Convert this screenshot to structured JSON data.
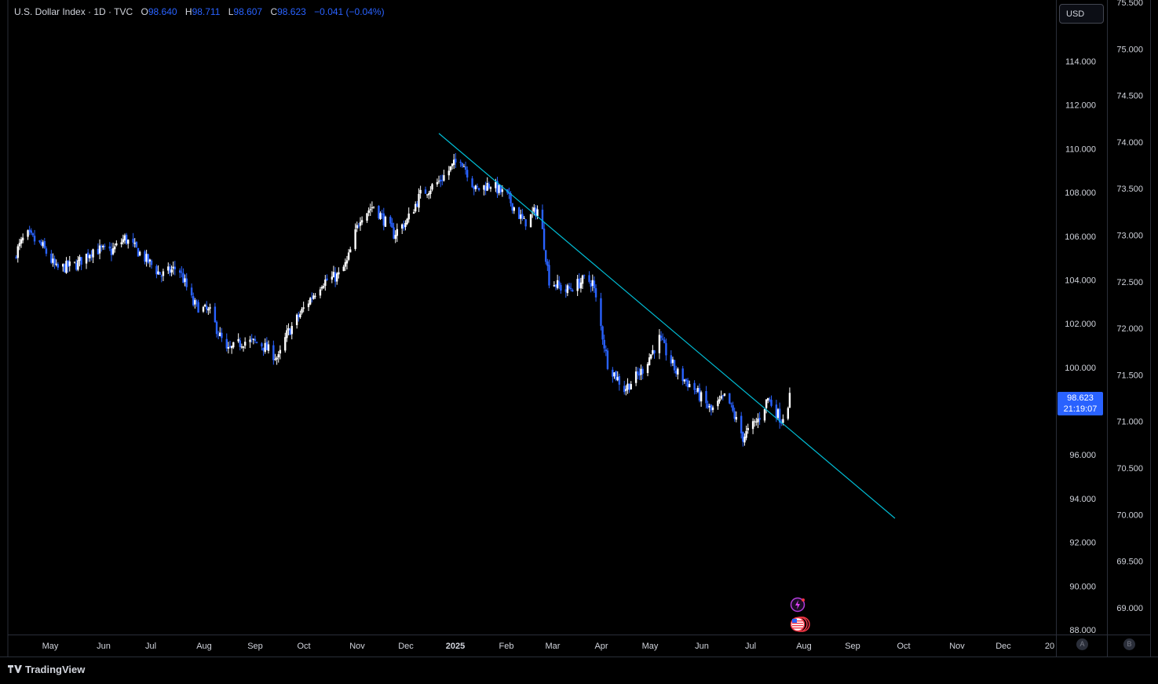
{
  "header": {
    "symbol": "U.S. Dollar Index · 1D · TVC",
    "open_label": "O",
    "open": "98.640",
    "high_label": "H",
    "high": "98.711",
    "low_label": "L",
    "low": "98.607",
    "close_label": "C",
    "close": "98.623",
    "change": "−0.041 (−0.04%)"
  },
  "toolbar": {
    "currency": "USD"
  },
  "last_price": {
    "value": "98.623",
    "countdown": "21:19:07"
  },
  "scale_buttons": {
    "a": "A",
    "b": "B"
  },
  "brand": {
    "name": "TradingView"
  },
  "colors": {
    "up": "#ffffff",
    "down": "#2962ff",
    "trendline": "#00bcd4",
    "background": "#000000",
    "accent": "#2962ff"
  },
  "icons": {
    "flash": "lightning-event-icon",
    "flag": "us-flag-event-icon"
  },
  "chart_data": {
    "type": "candlestick",
    "title": "U.S. Dollar Index",
    "interval": "1D",
    "y_axis_right": {
      "ticks": [
        "114.000",
        "112.000",
        "110.000",
        "108.000",
        "106.000",
        "104.000",
        "102.000",
        "100.000",
        "96.000",
        "94.000",
        "92.000",
        "90.000",
        "88.000"
      ],
      "range": [
        87.5,
        115.5
      ]
    },
    "y_axis_secondary": {
      "ticks": [
        "75.500",
        "75.000",
        "74.500",
        "74.000",
        "73.500",
        "73.000",
        "72.500",
        "72.000",
        "71.500",
        "71.000",
        "70.500",
        "70.000",
        "69.500",
        "69.000"
      ]
    },
    "x_axis": {
      "ticks": [
        "May",
        "Jun",
        "Jul",
        "Aug",
        "Sep",
        "Oct",
        "Nov",
        "Dec",
        "2025",
        "Feb",
        "Mar",
        "Apr",
        "May",
        "Jun",
        "Jul",
        "Aug",
        "Sep",
        "Oct",
        "Nov",
        "Dec",
        "20"
      ],
      "bold_ticks": [
        "2025"
      ]
    },
    "close_path": [
      {
        "date": "2024-04-20",
        "close": 105.0
      },
      {
        "date": "2024-04-28",
        "close": 106.1
      },
      {
        "date": "2024-05-08",
        "close": 105.5
      },
      {
        "date": "2024-05-16",
        "close": 104.5
      },
      {
        "date": "2024-05-28",
        "close": 104.7
      },
      {
        "date": "2024-06-07",
        "close": 105.4
      },
      {
        "date": "2024-06-18",
        "close": 105.3
      },
      {
        "date": "2024-06-26",
        "close": 105.9
      },
      {
        "date": "2024-07-08",
        "close": 105.0
      },
      {
        "date": "2024-07-18",
        "close": 104.2
      },
      {
        "date": "2024-07-28",
        "close": 104.6
      },
      {
        "date": "2024-08-06",
        "close": 102.9
      },
      {
        "date": "2024-08-16",
        "close": 102.5
      },
      {
        "date": "2024-08-26",
        "close": 100.7
      },
      {
        "date": "2024-09-05",
        "close": 101.2
      },
      {
        "date": "2024-09-15",
        "close": 101.1
      },
      {
        "date": "2024-09-26",
        "close": 100.4
      },
      {
        "date": "2024-10-01",
        "close": 101.5
      },
      {
        "date": "2024-10-12",
        "close": 102.8
      },
      {
        "date": "2024-10-22",
        "close": 103.9
      },
      {
        "date": "2024-11-01",
        "close": 104.2
      },
      {
        "date": "2024-11-06",
        "close": 104.8
      },
      {
        "date": "2024-11-14",
        "close": 106.9
      },
      {
        "date": "2024-11-22",
        "close": 107.4
      },
      {
        "date": "2024-12-04",
        "close": 106.1
      },
      {
        "date": "2024-12-12",
        "close": 106.7
      },
      {
        "date": "2024-12-20",
        "close": 107.9
      },
      {
        "date": "2024-12-31",
        "close": 108.5
      },
      {
        "date": "2025-01-13",
        "close": 109.6
      },
      {
        "date": "2025-01-22",
        "close": 108.1
      },
      {
        "date": "2025-01-31",
        "close": 108.4
      },
      {
        "date": "2025-02-10",
        "close": 107.8
      },
      {
        "date": "2025-02-20",
        "close": 106.6
      },
      {
        "date": "2025-03-01",
        "close": 107.3
      },
      {
        "date": "2025-03-07",
        "close": 104.0
      },
      {
        "date": "2025-03-17",
        "close": 103.5
      },
      {
        "date": "2025-03-28",
        "close": 104.0
      },
      {
        "date": "2025-04-02",
        "close": 103.9
      },
      {
        "date": "2025-04-11",
        "close": 100.2
      },
      {
        "date": "2025-04-21",
        "close": 99.0
      },
      {
        "date": "2025-05-01",
        "close": 99.8
      },
      {
        "date": "2025-05-12",
        "close": 101.3
      },
      {
        "date": "2025-05-22",
        "close": 99.8
      },
      {
        "date": "2025-06-02",
        "close": 99.0
      },
      {
        "date": "2025-06-12",
        "close": 98.0
      },
      {
        "date": "2025-06-21",
        "close": 98.7
      },
      {
        "date": "2025-07-01",
        "close": 96.8
      },
      {
        "date": "2025-07-10",
        "close": 97.6
      },
      {
        "date": "2025-07-16",
        "close": 98.6
      },
      {
        "date": "2025-07-24",
        "close": 97.6
      },
      {
        "date": "2025-07-29",
        "close": 98.6
      }
    ],
    "trendline": {
      "start": {
        "date": "2024-12-31",
        "value": 110.7
      },
      "end": {
        "date": "2025-09-30",
        "value": 93.1
      }
    }
  }
}
